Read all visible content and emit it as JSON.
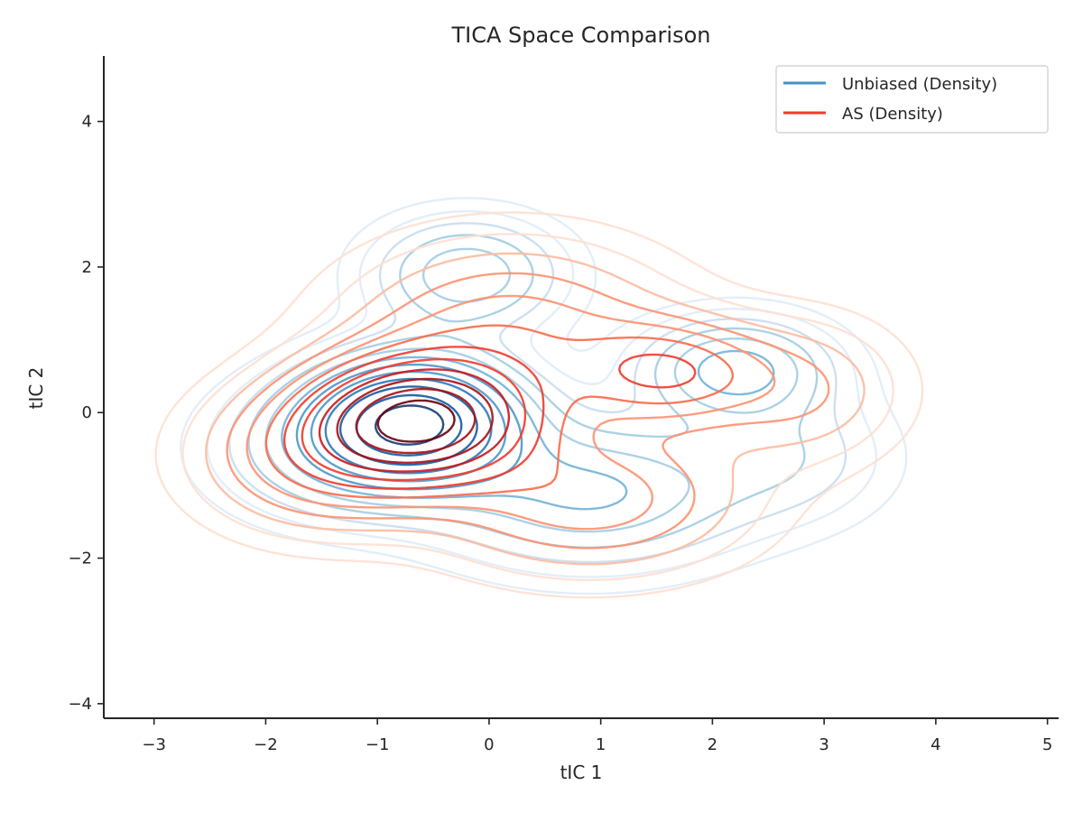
{
  "chart_data": {
    "type": "contour",
    "title": "TICA Space Comparison",
    "xlabel": "tIC 1",
    "ylabel": "tIC 2",
    "xlim": [
      -3.45,
      5.1
    ],
    "ylim": [
      -4.2,
      4.9
    ],
    "xticks": [
      -3,
      -2,
      -1,
      0,
      1,
      2,
      3,
      4,
      5
    ],
    "yticks": [
      -4,
      -2,
      0,
      2,
      4
    ],
    "x_tick_labels": [
      "−3",
      "−2",
      "−1",
      "0",
      "1",
      "2",
      "3",
      "4",
      "5"
    ],
    "y_tick_labels": [
      "−4",
      "−2",
      "0",
      "2",
      "4"
    ],
    "grid": false,
    "legend_position": "top-right",
    "series": [
      {
        "name": "Unbiased (Density)",
        "legend_color": "#4292c6",
        "colormap": [
          "#deebf7",
          "#c6dbef",
          "#9ecae1",
          "#6baed6",
          "#4292c6",
          "#2171b5",
          "#08519c",
          "#08306b"
        ],
        "components": [
          {
            "cx": -0.65,
            "cy": -0.1,
            "sx": 0.6,
            "sy": 0.55,
            "w": 1.0
          },
          {
            "cx": -0.2,
            "cy": 1.9,
            "sx": 0.55,
            "sy": 0.5,
            "w": 0.32
          },
          {
            "cx": 2.2,
            "cy": 0.6,
            "sx": 0.55,
            "sy": 0.45,
            "w": 0.38
          },
          {
            "cx": 0.9,
            "cy": -1.1,
            "sx": 0.9,
            "sy": 0.65,
            "w": 0.35
          },
          {
            "cx": -1.3,
            "cy": -0.5,
            "sx": 0.7,
            "sy": 0.6,
            "w": 0.3
          },
          {
            "cx": 2.7,
            "cy": -0.6,
            "sx": 0.6,
            "sy": 0.6,
            "w": 0.15
          }
        ]
      },
      {
        "name": "AS (Density)",
        "legend_color": "#ef3b2c",
        "colormap": [
          "#fee0d2",
          "#fcbba1",
          "#fc9272",
          "#fb6a4a",
          "#ef3b2c",
          "#cb181d",
          "#a50f15",
          "#67000d"
        ],
        "components": [
          {
            "cx": -0.6,
            "cy": -0.1,
            "sx": 0.65,
            "sy": 0.55,
            "w": 1.0
          },
          {
            "cx": 1.6,
            "cy": 0.55,
            "sx": 0.55,
            "sy": 0.45,
            "w": 0.36
          },
          {
            "cx": 0.2,
            "cy": 1.1,
            "sx": 0.95,
            "sy": 0.8,
            "w": 0.3
          },
          {
            "cx": 0.9,
            "cy": -1.2,
            "sx": 0.9,
            "sy": 0.65,
            "w": 0.3
          },
          {
            "cx": -1.5,
            "cy": -0.6,
            "sx": 0.7,
            "sy": 0.65,
            "w": 0.33
          },
          {
            "cx": 2.8,
            "cy": 0.3,
            "sx": 0.6,
            "sy": 0.65,
            "w": 0.18
          }
        ]
      }
    ]
  }
}
